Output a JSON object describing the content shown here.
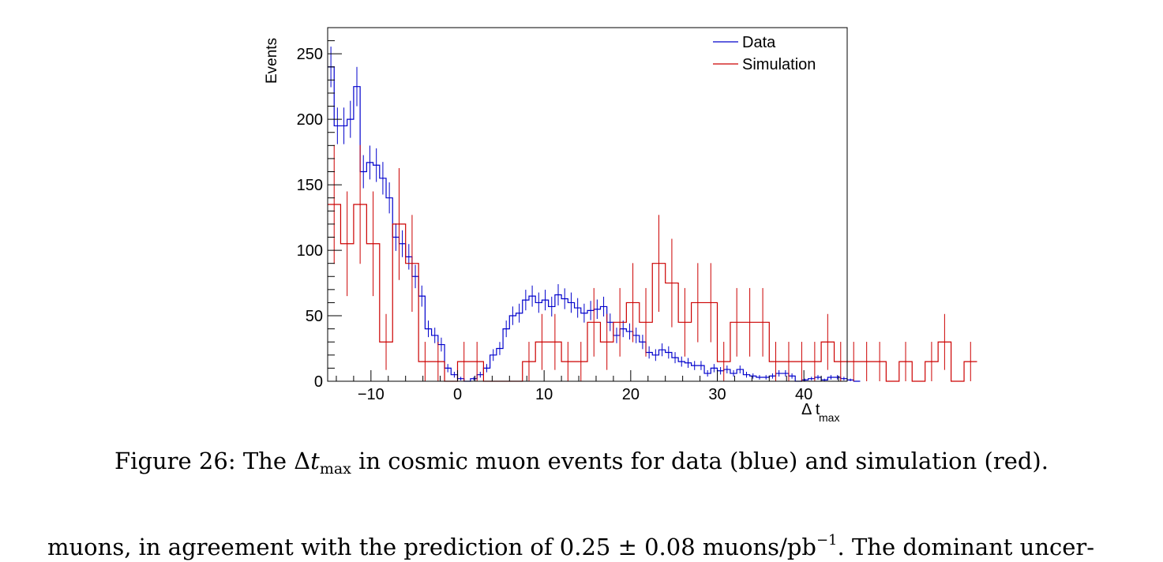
{
  "chart_data": {
    "type": "histogram",
    "xlabel_main": "Δ t",
    "xlabel_sub": "max",
    "ylabel": "Events",
    "xlim": [
      -15,
      45
    ],
    "ylim": [
      0,
      270
    ],
    "x_ticks": [
      -10,
      0,
      10,
      20,
      30,
      40
    ],
    "x_tick_labels": [
      "−10",
      "0",
      "10",
      "20",
      "30",
      "40"
    ],
    "y_ticks": [
      0,
      50,
      100,
      150,
      200,
      250
    ],
    "legend_position": "top-right",
    "series": [
      {
        "name": "Data",
        "color": "#0000cc",
        "bin_width": 0.75,
        "x_start": -15,
        "values": [
          240,
          195,
          195,
          200,
          225,
          160,
          167,
          165,
          155,
          140,
          110,
          105,
          95,
          80,
          65,
          40,
          35,
          28,
          10,
          5,
          2,
          0,
          2,
          5,
          10,
          20,
          25,
          40,
          50,
          52,
          62,
          65,
          60,
          62,
          57,
          66,
          63,
          60,
          56,
          52,
          54,
          55,
          57,
          45,
          35,
          40,
          38,
          35,
          30,
          22,
          20,
          24,
          22,
          18,
          15,
          14,
          12,
          12,
          6,
          10,
          8,
          9,
          6,
          9,
          5,
          4,
          3,
          3,
          4,
          6,
          6,
          4,
          0,
          1,
          2,
          3,
          1,
          3,
          3,
          2,
          1,
          0
        ]
      },
      {
        "name": "Simulation",
        "color": "#cc0000",
        "bin_width": 1.5,
        "x_start": -15,
        "values": [
          135,
          105,
          135,
          105,
          30,
          120,
          90,
          15,
          15,
          0,
          15,
          15,
          0,
          0,
          0,
          15,
          30,
          30,
          15,
          15,
          45,
          30,
          45,
          60,
          45,
          90,
          75,
          45,
          60,
          60,
          15,
          45,
          45,
          45,
          15,
          15,
          15,
          15,
          30,
          15,
          15,
          15,
          15,
          0,
          15,
          0,
          15,
          30,
          0,
          15
        ]
      }
    ]
  },
  "caption": {
    "prefix": "Figure 26: The ",
    "delta": "Δ",
    "t": "t",
    "sub": "max",
    "suffix": " in cosmic muon events for data (blue) and simulation (red)."
  },
  "body_text": {
    "before": "muons, in agreement with the prediction of 0.25 ± 0.08 muons/pb",
    "sup": "−1",
    "after": ". The dominant uncer-"
  }
}
